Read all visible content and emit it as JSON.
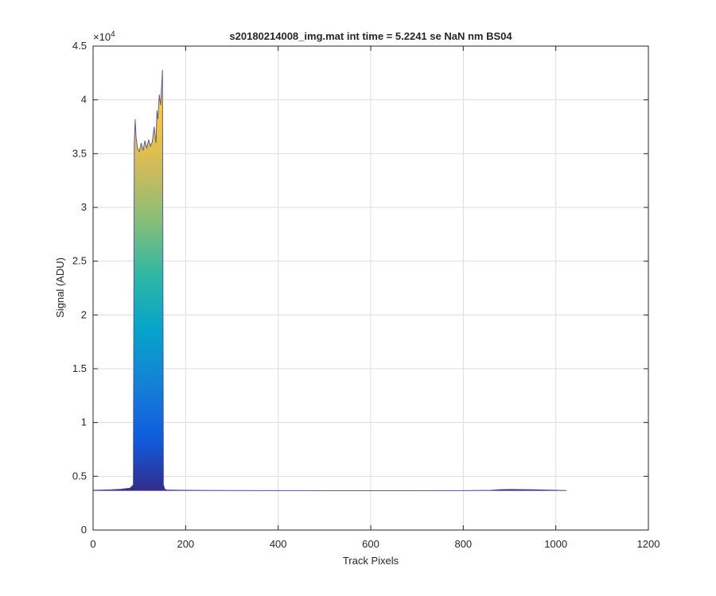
{
  "chart_data": {
    "type": "area",
    "title": "s20180214008_img.mat int time = 5.2241 se  NaN nm BS04",
    "xlabel": "Track Pixels",
    "ylabel": "Signal (ADU)",
    "y_exponent_label": "×10",
    "y_exponent": "4",
    "xlim": [
      0,
      1200
    ],
    "ylim": [
      0,
      45000
    ],
    "xticks": [
      0,
      200,
      400,
      600,
      800,
      1000,
      1200
    ],
    "xtick_labels": [
      "0",
      "200",
      "400",
      "600",
      "800",
      "1000",
      "1200"
    ],
    "yticks": [
      0,
      5000,
      10000,
      15000,
      20000,
      25000,
      30000,
      35000,
      40000,
      45000
    ],
    "ytick_labels": [
      "0",
      "0.5",
      "1",
      "1.5",
      "2",
      "2.5",
      "3",
      "3.5",
      "4",
      "4.5"
    ],
    "grid": true,
    "colormap": "parula",
    "colors": {
      "colormap_stops": [
        "#352a87",
        "#0f5cdd",
        "#1481d6",
        "#06a4ca",
        "#2eb7a4",
        "#87bf77",
        "#d1bb59",
        "#fec832",
        "#f9fb0e"
      ],
      "baseline": "#3a3a9a",
      "grid": "#dcdcdc",
      "axis": "#262626"
    },
    "series": [
      {
        "x": [
          0,
          20,
          40,
          60,
          80,
          87,
          89,
          91,
          93,
          96,
          100,
          104,
          108,
          112,
          116,
          120,
          124,
          128,
          132,
          136,
          138,
          140,
          143,
          146,
          148,
          150,
          152,
          155,
          160,
          200,
          300,
          400,
          500,
          600,
          700,
          800,
          860,
          880,
          900,
          940,
          980,
          1000,
          1023
        ],
        "y": [
          3700,
          3720,
          3750,
          3800,
          3900,
          4200,
          36000,
          38200,
          36500,
          35500,
          35200,
          36000,
          35300,
          36200,
          35500,
          36300,
          35700,
          36100,
          37500,
          36000,
          39000,
          38200,
          40500,
          39500,
          41200,
          42800,
          4200,
          3800,
          3720,
          3700,
          3680,
          3670,
          3660,
          3660,
          3660,
          3670,
          3700,
          3760,
          3780,
          3760,
          3720,
          3700,
          3680
        ]
      }
    ]
  }
}
